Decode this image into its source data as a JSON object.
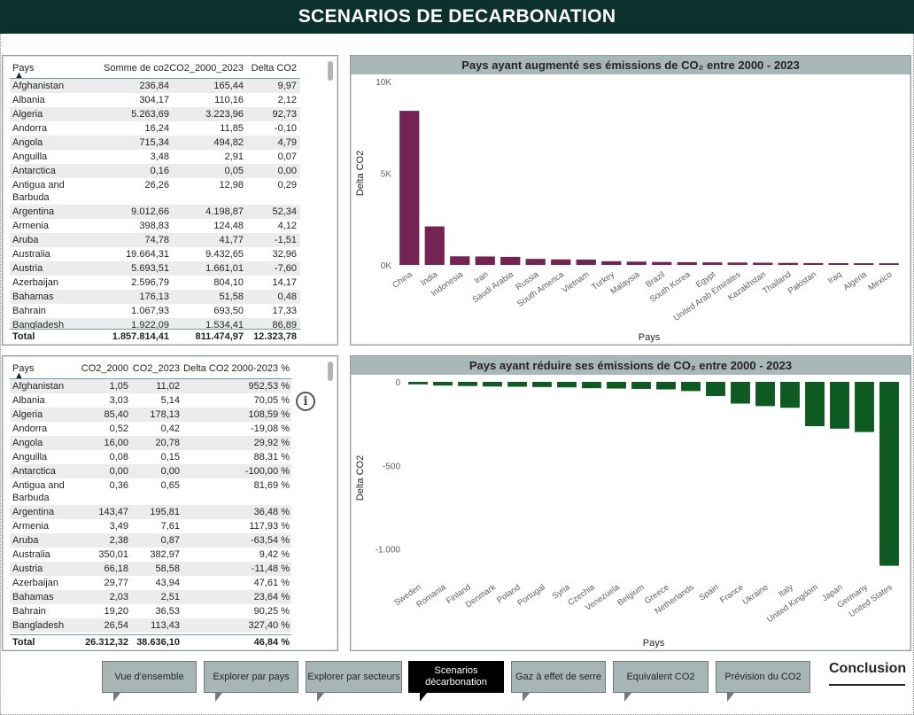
{
  "header": {
    "title": "SCENARIOS DE DECARBONATION"
  },
  "table1": {
    "columns": [
      "Pays",
      "Somme de co2",
      "CO2_2000_2023",
      "Delta CO2"
    ],
    "rows": [
      [
        "Afghanistan",
        "236,84",
        "165,44",
        "9,97"
      ],
      [
        "Albania",
        "304,17",
        "110,16",
        "2,12"
      ],
      [
        "Algeria",
        "5.263,69",
        "3.223,96",
        "92,73"
      ],
      [
        "Andorra",
        "16,24",
        "11,85",
        "-0,10"
      ],
      [
        "Angola",
        "715,34",
        "494,82",
        "4,79"
      ],
      [
        "Anguilla",
        "3,48",
        "2,91",
        "0,07"
      ],
      [
        "Antarctica",
        "0,16",
        "0,05",
        "0,00"
      ],
      [
        "Antigua and Barbuda",
        "26,26",
        "12,98",
        "0,29"
      ],
      [
        "Argentina",
        "9.012,66",
        "4.198,87",
        "52,34"
      ],
      [
        "Armenia",
        "398,83",
        "124,48",
        "4,12"
      ],
      [
        "Aruba",
        "74,78",
        "41,77",
        "-1,51"
      ],
      [
        "Australia",
        "19.664,31",
        "9.432,65",
        "32,96"
      ],
      [
        "Austria",
        "5.693,51",
        "1.661,01",
        "-7,60"
      ],
      [
        "Azerbaijan",
        "2.596,79",
        "804,10",
        "14,17"
      ],
      [
        "Bahamas",
        "176,13",
        "51,58",
        "0,48"
      ],
      [
        "Bahrain",
        "1.067,93",
        "693,50",
        "17,33"
      ],
      [
        "Bangladesh",
        "1.922,09",
        "1.534,41",
        "86,89"
      ]
    ],
    "total": [
      "Total",
      "1.857.814,41",
      "811.474,97",
      "12.323,78"
    ]
  },
  "table2": {
    "columns": [
      "Pays",
      "CO2_2000",
      "CO2_2023",
      "Delta CO2 2000-2023 %"
    ],
    "rows": [
      [
        "Afghanistan",
        "1,05",
        "11,02",
        "952,53 %"
      ],
      [
        "Albania",
        "3,03",
        "5,14",
        "70,05 %"
      ],
      [
        "Algeria",
        "85,40",
        "178,13",
        "108,59 %"
      ],
      [
        "Andorra",
        "0,52",
        "0,42",
        "-19,08 %"
      ],
      [
        "Angola",
        "16,00",
        "20,78",
        "29,92 %"
      ],
      [
        "Anguilla",
        "0,08",
        "0,15",
        "88,31 %"
      ],
      [
        "Antarctica",
        "0,00",
        "0,00",
        "-100,00 %"
      ],
      [
        "Antigua and Barbuda",
        "0,36",
        "0,65",
        "81,69 %"
      ],
      [
        "Argentina",
        "143,47",
        "195,81",
        "36,48 %"
      ],
      [
        "Armenia",
        "3,49",
        "7,61",
        "117,93 %"
      ],
      [
        "Aruba",
        "2,38",
        "0,87",
        "-63,54 %"
      ],
      [
        "Australia",
        "350,01",
        "382,97",
        "9,42 %"
      ],
      [
        "Austria",
        "66,18",
        "58,58",
        "-11,48 %"
      ],
      [
        "Azerbaijan",
        "29,77",
        "43,94",
        "47,61 %"
      ],
      [
        "Bahamas",
        "2,03",
        "2,51",
        "23,64 %"
      ],
      [
        "Bahrain",
        "19,20",
        "36,53",
        "90,25 %"
      ],
      [
        "Bangladesh",
        "26,54",
        "113,43",
        "327,40 %"
      ]
    ],
    "total": [
      "Total",
      "26.312,32",
      "38.636,10",
      "46,84 %"
    ]
  },
  "chart_data": [
    {
      "type": "bar",
      "title": "Pays ayant augmenté ses émissions de CO₂ entre 2000 - 2023",
      "xlabel": "Pays",
      "ylabel": "Delta CO2",
      "ylim": [
        0,
        10000
      ],
      "yticks": [
        0,
        5000,
        10000
      ],
      "ytick_labels": [
        "0K",
        "5K",
        "10K"
      ],
      "color": "#742453",
      "categories": [
        "China",
        "India",
        "Indonesia",
        "Iran",
        "Saudi Arabia",
        "Russia",
        "South America",
        "Vietnam",
        "Turkey",
        "Malaysia",
        "Brazil",
        "South Korea",
        "Egypt",
        "United Arab Emirates",
        "Kazakhstan",
        "Thailand",
        "Pakistan",
        "Iraq",
        "Algeria",
        "Mexico"
      ],
      "values": [
        8400,
        2100,
        470,
        460,
        440,
        330,
        300,
        290,
        200,
        180,
        160,
        150,
        140,
        130,
        120,
        110,
        100,
        95,
        93,
        90
      ]
    },
    {
      "type": "bar",
      "title": "Pays ayant réduire ses émissions de CO₂ entre 2000 - 2023",
      "xlabel": "Pays",
      "ylabel": "Delta CO2",
      "ylim": [
        -1150,
        0
      ],
      "yticks": [
        0,
        -500,
        -1000
      ],
      "ytick_labels": [
        "0",
        "-500",
        "-1.000"
      ],
      "color": "#0e5a23",
      "categories": [
        "Sweden",
        "Romania",
        "Finland",
        "Denmark",
        "Poland",
        "Portugal",
        "Syria",
        "Czechia",
        "Venezuela",
        "Belgium",
        "Greece",
        "Netherlands",
        "Spain",
        "France",
        "Ukraine",
        "Italy",
        "United Kingdom",
        "Japan",
        "Germany",
        "United States"
      ],
      "values": [
        -15,
        -22,
        -25,
        -28,
        -29,
        -31,
        -33,
        -38,
        -40,
        -42,
        -45,
        -55,
        -85,
        -130,
        -145,
        -155,
        -265,
        -280,
        -300,
        -1100
      ]
    }
  ],
  "info": {
    "icon": "info-icon",
    "glyph": "i"
  },
  "nav": {
    "buttons": [
      "Vue d'ensemble",
      "Explorer par pays",
      "Explorer par secteurs",
      "Scenarios décarbonation",
      "Gaz à effet de serre",
      "Equivalent CO2",
      "Prévision du CO2"
    ],
    "active": "Scenarios décarbonation",
    "conclusion": "Conclusion"
  },
  "colors": {
    "header_bg": "#0c312d",
    "title_bar": "#aab7b8",
    "nav_bg": "#a7b6b5"
  }
}
